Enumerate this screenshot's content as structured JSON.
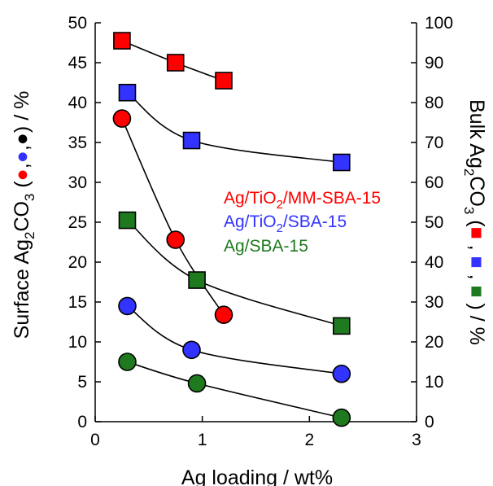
{
  "chart_data": {
    "type": "scatter",
    "xlabel": "Ag loading / wt%",
    "ylabel_left": "Surface Ag2CO3 (red, blue, black) / %",
    "ylabel_right": "Bulk Ag2CO3 (red, blue, green) / %",
    "xlim": [
      0,
      3
    ],
    "ylim_left": [
      0,
      50
    ],
    "ylim_right": [
      0,
      100
    ],
    "x_ticks": [
      "0",
      "1",
      "2",
      "3"
    ],
    "y_left_ticks": [
      "0",
      "5",
      "10",
      "15",
      "20",
      "25",
      "30",
      "35",
      "40",
      "45",
      "50"
    ],
    "y_right_ticks": [
      "0",
      "10",
      "20",
      "30",
      "40",
      "50",
      "60",
      "70",
      "80",
      "90",
      "100"
    ],
    "grid": false,
    "legend_entries": [
      {
        "label": "Ag/TiO2/MM-SBA-15",
        "color": "#ff0000"
      },
      {
        "label": "Ag/TiO2/SBA-15",
        "color": "#3333ff"
      },
      {
        "label": "Ag/SBA-15",
        "color": "#1f7a1f"
      }
    ],
    "series": [
      {
        "marker": "square",
        "axis": "right",
        "color": "#ff0000",
        "x": [
          0.25,
          0.75,
          1.2
        ],
        "y": [
          95.5,
          90,
          85.5
        ]
      },
      {
        "marker": "square",
        "axis": "right",
        "color": "#3333ff",
        "x": [
          0.3,
          0.9,
          2.3
        ],
        "y": [
          82.5,
          70.5,
          65
        ]
      },
      {
        "marker": "square",
        "axis": "right",
        "color": "#1f7a1f",
        "x": [
          0.3,
          0.95,
          2.3
        ],
        "y": [
          50.5,
          35.5,
          24
        ]
      },
      {
        "marker": "circle",
        "axis": "left",
        "color": "#ff0000",
        "x": [
          0.25,
          0.75,
          1.2
        ],
        "y": [
          38,
          22.8,
          13.4
        ]
      },
      {
        "marker": "circle",
        "axis": "left",
        "color": "#3333ff",
        "x": [
          0.3,
          0.9,
          2.3
        ],
        "y": [
          14.5,
          9,
          6
        ]
      },
      {
        "marker": "circle",
        "axis": "left",
        "color": "#1f7a1f",
        "x": [
          0.3,
          0.95,
          2.3
        ],
        "y": [
          7.5,
          4.8,
          0.5
        ]
      }
    ]
  }
}
